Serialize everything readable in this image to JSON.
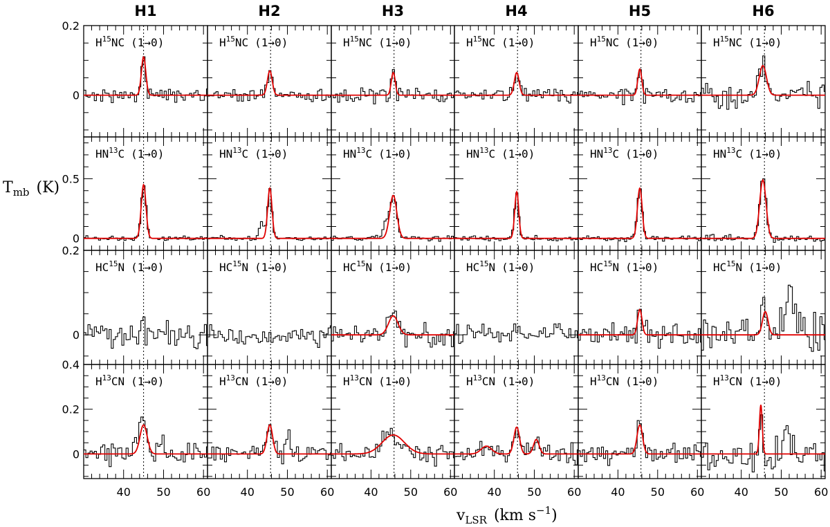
{
  "chart_data": {
    "type": "line",
    "title": "",
    "columns": [
      "H1",
      "H2",
      "H3",
      "H4",
      "H5",
      "H6"
    ],
    "xlabel": {
      "main": "v",
      "sub": "LSR",
      "unit": "(km s",
      "sup": "−1",
      "close": ")"
    },
    "ylabel": {
      "main": "T",
      "sub": "mb",
      "unit": "(K)"
    },
    "xlim": [
      30,
      61
    ],
    "xticks": [
      40,
      50,
      60
    ],
    "rows": [
      {
        "molecule": {
          "pre": "H",
          "iso": "15",
          "post": "NC",
          "trans": "(1→0)"
        },
        "ylim": [
          -0.12,
          0.2
        ],
        "yticks": [
          0,
          0.2
        ],
        "ytick_labels": [
          "0",
          "0.2"
        ]
      },
      {
        "molecule": {
          "pre": "HN",
          "iso": "13",
          "post": "C",
          "trans": "(1→0)"
        },
        "ylim": [
          -0.1,
          0.85
        ],
        "yticks": [
          0,
          0.5
        ],
        "ytick_labels": [
          "0",
          "0.5"
        ]
      },
      {
        "molecule": {
          "pre": "HC",
          "iso": "15",
          "post": "N",
          "trans": "(1→0)"
        },
        "ylim": [
          -0.07,
          0.2
        ],
        "yticks": [
          0,
          0.2
        ],
        "ytick_labels": [
          "0",
          "0.2"
        ]
      },
      {
        "molecule": {
          "pre": "H",
          "iso": "13",
          "post": "CN",
          "trans": "(1→0)"
        },
        "ylim": [
          -0.11,
          0.4
        ],
        "yticks": [
          0,
          0.2,
          0.4
        ],
        "ytick_labels": [
          "0",
          "0.2",
          "0.4"
        ]
      }
    ],
    "vlsr": [
      45,
      45.8,
      45.8,
      45.8,
      45.8,
      45.8
    ],
    "fits": [
      [
        [
          {
            "a": 0.11,
            "c": 45,
            "w": 0.55
          }
        ],
        [
          {
            "a": 0.45,
            "c": 45,
            "w": 0.6
          }
        ],
        [],
        [
          {
            "a": 0.13,
            "c": 45,
            "w": 0.9
          }
        ]
      ],
      [
        [
          {
            "a": 0.07,
            "c": 45.6,
            "w": 0.6
          }
        ],
        [
          {
            "a": 0.42,
            "c": 45.6,
            "w": 0.55
          }
        ],
        [],
        [
          {
            "a": 0.13,
            "c": 45.6,
            "w": 0.7
          }
        ]
      ],
      [
        [
          {
            "a": 0.065,
            "c": 45.6,
            "w": 0.5
          }
        ],
        [
          {
            "a": 0.36,
            "c": 45.6,
            "w": 0.9
          }
        ],
        [
          {
            "a": 0.045,
            "c": 45.6,
            "w": 1.2
          }
        ],
        [
          {
            "a": 0.085,
            "c": 45.6,
            "w": 2.8
          }
        ]
      ],
      [
        [
          {
            "a": 0.065,
            "c": 45.6,
            "w": 0.6
          }
        ],
        [
          {
            "a": 0.39,
            "c": 45.6,
            "w": 0.5
          }
        ],
        [],
        [
          {
            "a": 0.12,
            "c": 45.6,
            "w": 0.7
          },
          {
            "a": 0.065,
            "c": 50.5,
            "w": 0.7
          },
          {
            "a": 0.035,
            "c": 38,
            "w": 1.3
          }
        ]
      ],
      [
        [
          {
            "a": 0.075,
            "c": 45.5,
            "w": 0.5
          }
        ],
        [
          {
            "a": 0.42,
            "c": 45.5,
            "w": 0.6
          }
        ],
        [
          {
            "a": 0.06,
            "c": 45.5,
            "w": 0.55
          }
        ],
        [
          {
            "a": 0.13,
            "c": 45.5,
            "w": 0.7
          }
        ]
      ],
      [
        [
          {
            "a": 0.085,
            "c": 45.4,
            "w": 0.9
          }
        ],
        [
          {
            "a": 0.49,
            "c": 45.4,
            "w": 0.8
          }
        ],
        [
          {
            "a": 0.055,
            "c": 46,
            "w": 0.7
          }
        ],
        [
          {
            "a": 0.22,
            "c": 44.9,
            "w": 0.35
          }
        ]
      ]
    ],
    "noise": [
      [
        0.011,
        0.012,
        0.018,
        0.027
      ],
      [
        0.011,
        0.012,
        0.015,
        0.028
      ],
      [
        0.013,
        0.015,
        0.018,
        0.03
      ],
      [
        0.012,
        0.012,
        0.015,
        0.028
      ],
      [
        0.012,
        0.015,
        0.018,
        0.028
      ],
      [
        0.022,
        0.02,
        0.038,
        0.045
      ]
    ],
    "extra": {
      "1-1": [
        {
          "c": 43.6,
          "a": 0.15,
          "w": 0.5
        }
      ],
      "2-1": [
        {
          "c": 43.5,
          "a": 0.12,
          "w": 0.5
        }
      ],
      "0-2": [
        {
          "c": 44.9,
          "a": 0.045,
          "w": 0.3
        }
      ],
      "5-2": [
        {
          "c": 52.5,
          "a": 0.08,
          "w": 1.2
        }
      ],
      "0-3": [
        {
          "c": 43.5,
          "a": 0.05,
          "w": 0.8
        },
        {
          "c": 49.5,
          "a": 0.06,
          "w": 0.5
        }
      ],
      "1-3": [
        {
          "c": 50.5,
          "a": 0.12,
          "w": 0.5
        }
      ],
      "5-3": [
        {
          "c": 51,
          "a": 0.08,
          "w": 1.2
        }
      ]
    },
    "series": [
      {
        "name": "observed spectrum",
        "color": "#000000",
        "style": "histogram"
      },
      {
        "name": "Gaussian fit",
        "color": "#e00000",
        "style": "line"
      }
    ]
  }
}
